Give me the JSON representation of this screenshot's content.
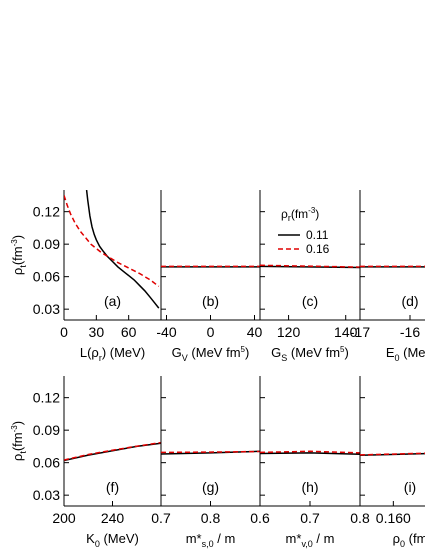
{
  "chart_data": {
    "type": "line",
    "layout": "two rows of panels sharing a y axis per row",
    "ylabel": {
      "main": "ρ",
      "sub": "t",
      "unit_open": "(fm",
      "unit_sup": "-3",
      "unit_close": ")"
    },
    "ylim": [
      0.02,
      0.14
    ],
    "yticks": [
      "0.12",
      "0.09",
      "0.06",
      "0.03"
    ],
    "yticks_values": [
      0.12,
      0.09,
      0.06,
      0.03
    ],
    "legend": {
      "title_main": "ρ",
      "title_sub": "r",
      "title_unit_open": "(fm",
      "title_unit_sup": "-3",
      "title_unit_close": ")",
      "entries": [
        {
          "label": "0.11",
          "color": "#000000",
          "dash": "solid"
        },
        {
          "label": "0.16",
          "color": "#e00000",
          "dash": "dashed"
        }
      ]
    },
    "panels": [
      {
        "tag": "(a)",
        "row": 0,
        "col": 0,
        "xlabel": {
          "pre": "L(ρ",
          "sub": "r",
          "post": ") (MeV)"
        },
        "xlim": [
          0,
          90
        ],
        "xticks": [
          {
            "v": 0,
            "t": "0"
          },
          {
            "v": 30,
            "t": "30"
          },
          {
            "v": 60,
            "t": "60"
          }
        ],
        "series": [
          {
            "name": "0.11",
            "x": [
              21,
              22,
              24,
              26,
              28,
              30,
              33,
              36,
              40,
              45,
              50,
              55,
              60,
              65,
              70,
              75,
              80,
              84,
              88
            ],
            "y": [
              0.14,
              0.131,
              0.116,
              0.106,
              0.099,
              0.094,
              0.088,
              0.084,
              0.079,
              0.074,
              0.069,
              0.065,
              0.061,
              0.057,
              0.052,
              0.047,
              0.041,
              0.036,
              0.031
            ]
          },
          {
            "name": "0.16",
            "x": [
              0,
              3,
              6,
              10,
              15,
              20,
              25,
              30,
              35,
              40,
              50,
              60,
              70,
              80,
              88
            ],
            "y": [
              0.135,
              0.126,
              0.118,
              0.11,
              0.102,
              0.096,
              0.09,
              0.086,
              0.082,
              0.079,
              0.073,
              0.068,
              0.063,
              0.057,
              0.051
            ]
          }
        ]
      },
      {
        "tag": "(b)",
        "row": 0,
        "col": 1,
        "xlabel": {
          "pre": "G",
          "sub": "V",
          "post": " (MeV fm",
          "sup": "5",
          "close": ")"
        },
        "xlim": [
          -45,
          45
        ],
        "xticks": [
          {
            "v": -40,
            "t": "-40"
          },
          {
            "v": 0,
            "t": "0"
          },
          {
            "v": 40,
            "t": "40"
          }
        ],
        "series": [
          {
            "name": "0.11",
            "x": [
              -45,
              45
            ],
            "y": [
              0.069,
              0.069
            ]
          },
          {
            "name": "0.16",
            "x": [
              -45,
              45
            ],
            "y": [
              0.0695,
              0.0695
            ]
          }
        ]
      },
      {
        "tag": "(c)",
        "row": 0,
        "col": 2,
        "xlabel": {
          "pre": "G",
          "sub": "S",
          "post": " (MeV fm",
          "sup": "5",
          "close": ")"
        },
        "xlim": [
          110,
          145
        ],
        "xticks": [
          {
            "v": 120,
            "t": "120"
          },
          {
            "v": 140,
            "t": "140"
          }
        ],
        "series": [
          {
            "name": "0.11",
            "x": [
              110,
              145
            ],
            "y": [
              0.0695,
              0.0685
            ]
          },
          {
            "name": "0.16",
            "x": [
              110,
              145
            ],
            "y": [
              0.0705,
              0.0688
            ]
          }
        ]
      },
      {
        "tag": "(d)",
        "row": 0,
        "col": 3,
        "xlabel": {
          "pre": "E",
          "sub": "0",
          "post": " (MeV"
        },
        "xlim": [
          -17,
          -15
        ],
        "xticks": [
          {
            "v": -17,
            "t": "-17"
          },
          {
            "v": -16,
            "t": "-16"
          }
        ],
        "series": [
          {
            "name": "0.11",
            "x": [
              -17,
              -15
            ],
            "y": [
              0.069,
              0.069
            ]
          },
          {
            "name": "0.16",
            "x": [
              -17,
              -15
            ],
            "y": [
              0.0695,
              0.0695
            ]
          }
        ]
      },
      {
        "tag": "(f)",
        "row": 1,
        "col": 0,
        "xlabel": {
          "pre": "K",
          "sub": "0",
          "post": " (MeV)"
        },
        "xlim": [
          200,
          280
        ],
        "xticks": [
          {
            "v": 200,
            "t": "200"
          },
          {
            "v": 240,
            "t": "240"
          }
        ],
        "series": [
          {
            "name": "0.11",
            "x": [
              200,
              220,
              240,
              260,
              280
            ],
            "y": [
              0.062,
              0.067,
              0.071,
              0.075,
              0.078
            ]
          },
          {
            "name": "0.16",
            "x": [
              200,
              220,
              240,
              260,
              280
            ],
            "y": [
              0.0625,
              0.0675,
              0.0715,
              0.0752,
              0.0785
            ]
          }
        ]
      },
      {
        "tag": "(g)",
        "row": 1,
        "col": 1,
        "xlabel": {
          "pre": "m*",
          "sub": "s,0",
          "post": " / m"
        },
        "xlim": [
          0.7,
          0.9
        ],
        "xticks": [
          {
            "v": 0.7,
            "t": "0.7"
          },
          {
            "v": 0.8,
            "t": "0.8"
          }
        ],
        "series": [
          {
            "name": "0.11",
            "x": [
              0.7,
              0.8,
              0.9
            ],
            "y": [
              0.068,
              0.069,
              0.0705
            ]
          },
          {
            "name": "0.16",
            "x": [
              0.7,
              0.8,
              0.9
            ],
            "y": [
              0.0695,
              0.0698,
              0.0703
            ]
          }
        ]
      },
      {
        "tag": "(h)",
        "row": 1,
        "col": 2,
        "xlabel": {
          "pre": "m*",
          "sub": "v,0",
          "post": " / m"
        },
        "xlim": [
          0.6,
          0.8
        ],
        "xticks": [
          {
            "v": 0.6,
            "t": "0.6"
          },
          {
            "v": 0.7,
            "t": "0.7"
          },
          {
            "v": 0.8,
            "t": "0.8"
          }
        ],
        "series": [
          {
            "name": "0.11",
            "x": [
              0.6,
              0.7,
              0.8
            ],
            "y": [
              0.0685,
              0.069,
              0.0678
            ]
          },
          {
            "name": "0.16",
            "x": [
              0.6,
              0.7,
              0.8
            ],
            "y": [
              0.0695,
              0.0705,
              0.069
            ]
          }
        ]
      },
      {
        "tag": "(i)",
        "row": 1,
        "col": 3,
        "xlabel": {
          "pre": "ρ",
          "sub": "0",
          "post": " (fm"
        },
        "xlim": [
          0.155,
          0.17
        ],
        "xticks": [
          {
            "v": 0.16,
            "t": "0.160"
          }
        ],
        "series": [
          {
            "name": "0.11",
            "x": [
              0.155,
              0.17
            ],
            "y": [
              0.0668,
              0.0692
            ]
          },
          {
            "name": "0.16",
            "x": [
              0.155,
              0.17
            ],
            "y": [
              0.0672,
              0.0696
            ]
          }
        ]
      }
    ]
  }
}
